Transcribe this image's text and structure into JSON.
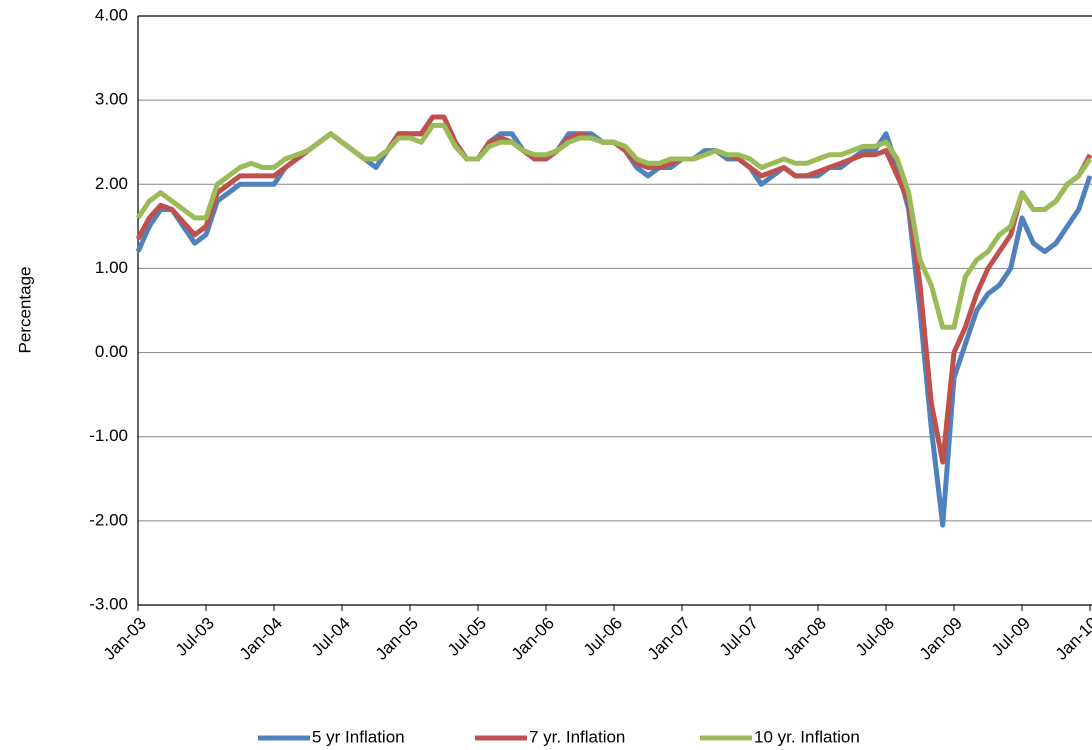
{
  "chart_data": {
    "type": "line",
    "y_label": "Percentage",
    "categories": [
      "Jan-03",
      null,
      null,
      null,
      null,
      null,
      "Jul-03",
      null,
      null,
      null,
      null,
      null,
      "Jan-04",
      null,
      null,
      null,
      null,
      null,
      "Jul-04",
      null,
      null,
      null,
      null,
      null,
      "Jan-05",
      null,
      null,
      null,
      null,
      null,
      "Jul-05",
      null,
      null,
      null,
      null,
      null,
      "Jan-06",
      null,
      null,
      null,
      null,
      null,
      "Jul-06",
      null,
      null,
      null,
      null,
      null,
      "Jan-07",
      null,
      null,
      null,
      null,
      null,
      "Jul-07",
      null,
      null,
      null,
      null,
      null,
      "Jan-08",
      null,
      null,
      null,
      null,
      null,
      "Jul-08",
      null,
      null,
      null,
      null,
      null,
      "Jan-09",
      null,
      null,
      null,
      null,
      null,
      "Jul-09",
      null,
      null,
      null,
      null,
      null,
      "Jan-10"
    ],
    "series": [
      {
        "name": "5 yr Inflation",
        "color": "#4f81bd",
        "values": [
          1.2,
          1.5,
          1.7,
          1.7,
          1.5,
          1.3,
          1.4,
          1.8,
          1.9,
          2.0,
          2.0,
          2.0,
          2.0,
          2.2,
          2.3,
          2.4,
          2.5,
          2.6,
          2.5,
          2.4,
          2.3,
          2.2,
          2.4,
          2.6,
          2.6,
          2.6,
          2.8,
          2.8,
          2.5,
          2.3,
          2.3,
          2.5,
          2.6,
          2.6,
          2.4,
          2.3,
          2.3,
          2.4,
          2.6,
          2.6,
          2.6,
          2.5,
          2.5,
          2.4,
          2.2,
          2.1,
          2.2,
          2.2,
          2.3,
          2.3,
          2.4,
          2.4,
          2.3,
          2.3,
          2.2,
          2.0,
          2.1,
          2.2,
          2.1,
          2.1,
          2.1,
          2.2,
          2.2,
          2.3,
          2.4,
          2.4,
          2.6,
          2.2,
          1.7,
          0.5,
          -0.9,
          -2.05,
          -0.3,
          0.1,
          0.5,
          0.7,
          0.8,
          1.0,
          1.6,
          1.3,
          1.2,
          1.3,
          1.5,
          1.7,
          2.1
        ]
      },
      {
        "name": "7 yr. Inflation",
        "color": "#c0504d",
        "values": [
          1.35,
          1.6,
          1.75,
          1.7,
          1.55,
          1.4,
          1.5,
          1.9,
          2.0,
          2.1,
          2.1,
          2.1,
          2.1,
          2.2,
          2.3,
          2.4,
          2.5,
          2.6,
          2.5,
          2.4,
          2.3,
          2.3,
          2.4,
          2.6,
          2.6,
          2.6,
          2.8,
          2.8,
          2.5,
          2.3,
          2.3,
          2.5,
          2.55,
          2.5,
          2.4,
          2.3,
          2.3,
          2.4,
          2.55,
          2.6,
          2.55,
          2.5,
          2.5,
          2.4,
          2.25,
          2.2,
          2.2,
          2.25,
          2.3,
          2.3,
          2.35,
          2.4,
          2.35,
          2.3,
          2.2,
          2.1,
          2.15,
          2.2,
          2.1,
          2.1,
          2.15,
          2.2,
          2.25,
          2.3,
          2.35,
          2.35,
          2.4,
          2.1,
          1.8,
          0.8,
          -0.6,
          -1.3,
          0.0,
          0.3,
          0.7,
          1.0,
          1.2,
          1.4,
          1.9,
          1.7,
          1.7,
          1.8,
          2.0,
          2.1,
          2.35
        ]
      },
      {
        "name": "10 yr. Inflation",
        "color": "#9bbb59",
        "values": [
          1.6,
          1.8,
          1.9,
          1.8,
          1.7,
          1.6,
          1.6,
          2.0,
          2.1,
          2.2,
          2.25,
          2.2,
          2.2,
          2.3,
          2.35,
          2.4,
          2.5,
          2.6,
          2.5,
          2.4,
          2.3,
          2.3,
          2.4,
          2.55,
          2.55,
          2.5,
          2.7,
          2.7,
          2.45,
          2.3,
          2.3,
          2.45,
          2.5,
          2.5,
          2.4,
          2.35,
          2.35,
          2.4,
          2.5,
          2.55,
          2.55,
          2.5,
          2.5,
          2.45,
          2.3,
          2.25,
          2.25,
          2.3,
          2.3,
          2.3,
          2.35,
          2.4,
          2.35,
          2.35,
          2.3,
          2.2,
          2.25,
          2.3,
          2.25,
          2.25,
          2.3,
          2.35,
          2.35,
          2.4,
          2.45,
          2.45,
          2.5,
          2.3,
          1.9,
          1.1,
          0.8,
          0.3,
          0.3,
          0.9,
          1.1,
          1.2,
          1.4,
          1.5,
          1.9,
          1.7,
          1.7,
          1.8,
          2.0,
          2.1,
          2.3
        ]
      }
    ],
    "ylim": [
      -3,
      4
    ],
    "yticks": [
      {
        "value": -3,
        "label": "-3.00"
      },
      {
        "value": -2,
        "label": "-2.00"
      },
      {
        "value": -1,
        "label": "-1.00"
      },
      {
        "value": 0,
        "label": "0.00"
      },
      {
        "value": 1,
        "label": "1.00"
      },
      {
        "value": 2,
        "label": "2.00"
      },
      {
        "value": 3,
        "label": "3.00"
      },
      {
        "value": 4,
        "label": "4.00"
      }
    ],
    "grid": true,
    "legend": "bottom"
  }
}
